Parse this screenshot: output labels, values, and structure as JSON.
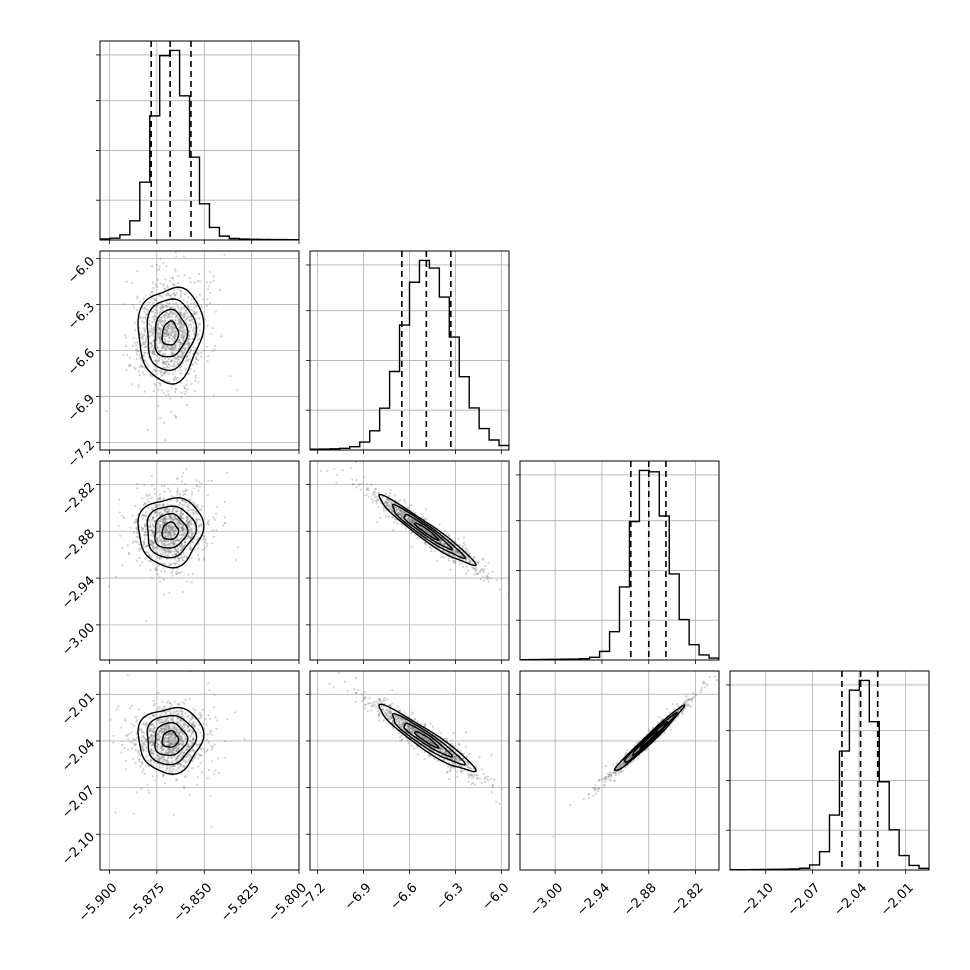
{
  "chart_data": {
    "type": "corner",
    "parameters": [
      {
        "index": 0,
        "range": [
          -5.905,
          -5.8
        ],
        "ticks": [
          -5.9,
          -5.875,
          -5.85,
          -5.825,
          -5.8
        ],
        "tick_labels": [
          "−5.900",
          "−5.875",
          "−5.850",
          "−5.825",
          "−5.800"
        ],
        "median": -5.868,
        "q16": -5.878,
        "q84": -5.857,
        "sigma": 0.0085
      },
      {
        "index": 1,
        "range": [
          -7.25,
          -5.95
        ],
        "ticks": [
          -7.2,
          -6.9,
          -6.6,
          -6.3,
          -6.0
        ],
        "tick_labels": [
          "−7.2",
          "−6.9",
          "−6.6",
          "−6.3",
          "−6.0"
        ],
        "median": -6.49,
        "q16": -6.65,
        "q84": -6.33,
        "sigma": 0.155
      },
      {
        "index": 2,
        "range": [
          -3.045,
          -2.79
        ],
        "ticks": [
          -3.0,
          -2.94,
          -2.88,
          -2.82
        ],
        "tick_labels": [
          "−3.00",
          "−2.94",
          "−2.88",
          "−2.82"
        ],
        "median": -2.88,
        "q16": -2.903,
        "q84": -2.858,
        "sigma": 0.022
      },
      {
        "index": 3,
        "range": [
          -2.123,
          -1.995
        ],
        "ticks": [
          -2.1,
          -2.07,
          -2.04,
          -2.01
        ],
        "tick_labels": [
          "−2.10",
          "−2.07",
          "−2.04",
          "−2.01"
        ],
        "median": -2.039,
        "q16": -2.051,
        "q84": -2.028,
        "sigma": 0.0105
      }
    ],
    "correlations": {
      "0-1": 0.08,
      "0-2": 0.05,
      "0-3": 0.05,
      "1-2": -0.96,
      "1-3": -0.94,
      "2-3": 0.985
    },
    "grid": true,
    "contour_levels": [
      "0.5",
      "1.0",
      "1.5",
      "2.0 sigma"
    ],
    "colors": {
      "points": "#7f7f7f",
      "lines": "#000000",
      "grid": "#b0b0b0"
    }
  }
}
